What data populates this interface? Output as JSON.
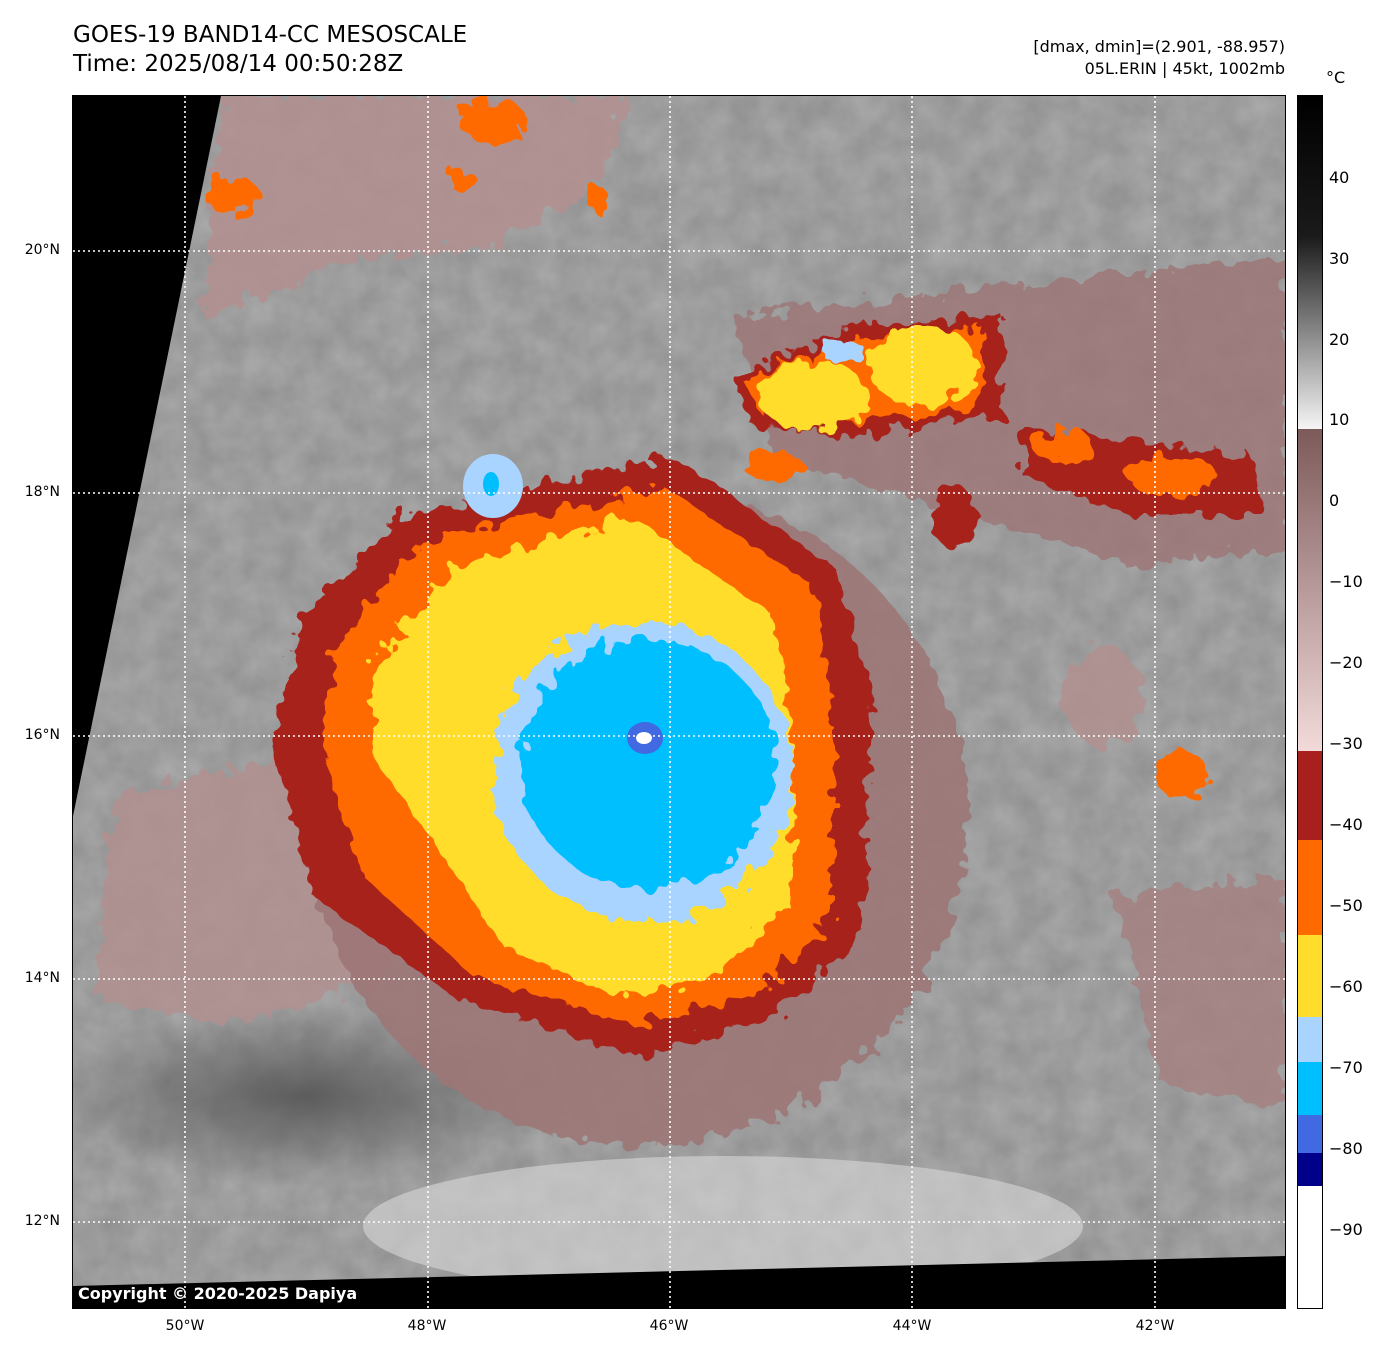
{
  "header": {
    "title_line1": "GOES-19 BAND14-CC MESOSCALE",
    "title_line2": "Time: 2025/08/14 00:50:28Z",
    "info_line1": "[dmax, dmin]=(2.901, -88.957)",
    "info_line2": "05L.ERIN | 45kt, 1002mb"
  },
  "map": {
    "lat_labels": [
      "20°N",
      "18°N",
      "16°N",
      "14°N",
      "12°N"
    ],
    "lon_labels": [
      "50°W",
      "48°W",
      "46°W",
      "44°W",
      "42°W"
    ],
    "copyright": "Copyright © 2020-2025 Dapiya",
    "storm_center": {
      "lat": 16.0,
      "lon": -46.2
    }
  },
  "colorbar": {
    "unit": "°C",
    "ticks": [
      "40",
      "30",
      "20",
      "10",
      "0",
      "−10",
      "−20",
      "−30",
      "−40",
      "−50",
      "−60",
      "−70",
      "−80",
      "−90"
    ],
    "colors": {
      "above_40": "#000000",
      "gray_top": "#202020",
      "gray_bottom": "#f5f5f5",
      "pink_top": "#7d5a5a",
      "pink_bottom": "#f3dada",
      "dark_red": "#a8201e",
      "orange": "#ff6a00",
      "yellow": "#ffdd2a",
      "light_blue": "#a8d4ff",
      "cyan": "#00bfff",
      "royal_blue": "#4169e1",
      "navy": "#00008b",
      "white": "#ffffff"
    }
  }
}
